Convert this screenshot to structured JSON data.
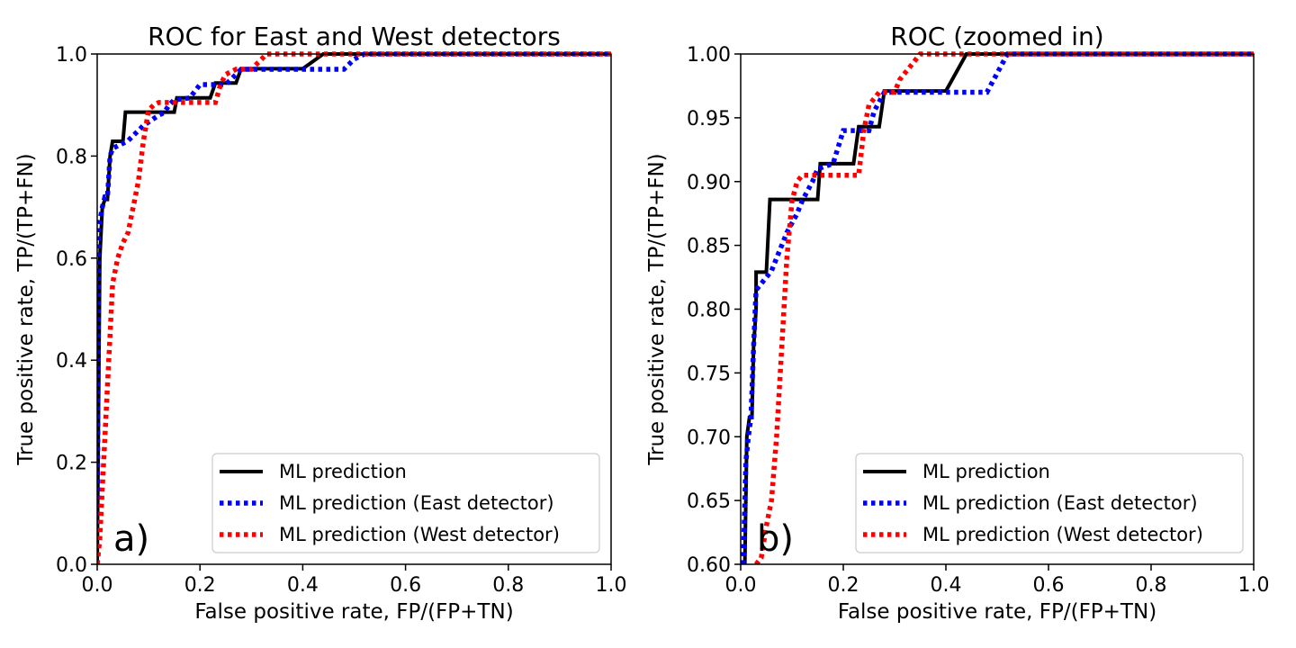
{
  "chart_data": [
    {
      "type": "line",
      "title": "ROC for East and West detectors",
      "xlabel": "False positive rate, FP/(FP+TN)",
      "ylabel": "True positive rate,  TP/(TP+FN)",
      "xlim": [
        0,
        1
      ],
      "ylim": [
        0,
        1
      ],
      "xticks": [
        "0.0",
        "0.2",
        "0.4",
        "0.6",
        "0.8",
        "1.0"
      ],
      "yticks": [
        "0.0",
        "0.2",
        "0.4",
        "0.6",
        "0.8",
        "1.0"
      ],
      "panel_label": "a)",
      "legend_position": "lower-right",
      "series": [
        {
          "name": "ML prediction",
          "color": "#000000",
          "style": "solid",
          "x": [
            0,
            0.005,
            0.01,
            0.015,
            0.02,
            0.025,
            0.03,
            0.035,
            0.04,
            0.05,
            0.055,
            0.06,
            0.09,
            0.15,
            0.155,
            0.22,
            0.23,
            0.24,
            0.27,
            0.28,
            0.29,
            0.33,
            0.4,
            0.44,
            0.5,
            1.0
          ],
          "y": [
            0,
            0.6,
            0.7,
            0.715,
            0.715,
            0.8,
            0.829,
            0.829,
            0.829,
            0.829,
            0.886,
            0.886,
            0.886,
            0.886,
            0.914,
            0.914,
            0.943,
            0.943,
            0.943,
            0.971,
            0.971,
            0.971,
            0.971,
            1.0,
            1.0,
            1.0
          ]
        },
        {
          "name": "ML prediction (East detector)",
          "color": "#0000ff",
          "style": "dotted",
          "x": [
            0,
            0.003,
            0.01,
            0.015,
            0.02,
            0.025,
            0.03,
            0.04,
            0.06,
            0.07,
            0.08,
            0.09,
            0.12,
            0.13,
            0.14,
            0.15,
            0.18,
            0.2,
            0.24,
            0.25,
            0.26,
            0.27,
            0.28,
            0.3,
            0.33,
            0.48,
            0.5,
            0.52,
            1.0
          ],
          "y": [
            0,
            0.66,
            0.7,
            0.72,
            0.72,
            0.8,
            0.815,
            0.82,
            0.83,
            0.84,
            0.85,
            0.86,
            0.88,
            0.885,
            0.9,
            0.91,
            0.914,
            0.94,
            0.94,
            0.94,
            0.95,
            0.96,
            0.97,
            0.97,
            0.97,
            0.97,
            0.99,
            1.0,
            1.0
          ]
        },
        {
          "name": "ML prediction (West detector)",
          "color": "#ff0000",
          "style": "dotted",
          "x": [
            0,
            0.005,
            0.01,
            0.015,
            0.02,
            0.025,
            0.03,
            0.04,
            0.05,
            0.06,
            0.07,
            0.08,
            0.09,
            0.1,
            0.11,
            0.12,
            0.15,
            0.2,
            0.23,
            0.24,
            0.25,
            0.27,
            0.3,
            0.31,
            0.33,
            0.36,
            1.0
          ],
          "y": [
            0,
            0.05,
            0.15,
            0.25,
            0.35,
            0.45,
            0.55,
            0.6,
            0.63,
            0.65,
            0.7,
            0.75,
            0.83,
            0.89,
            0.9,
            0.905,
            0.905,
            0.905,
            0.905,
            0.94,
            0.96,
            0.97,
            0.97,
            0.98,
            1.0,
            1.0,
            1.0
          ]
        }
      ]
    },
    {
      "type": "line",
      "title": "ROC (zoomed in)",
      "xlabel": "False positive rate, FP/(FP+TN)",
      "ylabel": "True positive rate,  TP/(TP+FN)",
      "xlim": [
        0,
        1
      ],
      "ylim": [
        0.6,
        1
      ],
      "xticks": [
        "0.0",
        "0.2",
        "0.4",
        "0.6",
        "0.8",
        "1.0"
      ],
      "yticks": [
        "0.60",
        "0.65",
        "0.70",
        "0.75",
        "0.80",
        "0.85",
        "0.90",
        "0.95",
        "1.00"
      ],
      "panel_label": "b)",
      "legend_position": "lower-right",
      "series": [
        {
          "name": "ML prediction",
          "color": "#000000",
          "style": "solid",
          "x": [
            0.008,
            0.012,
            0.017,
            0.022,
            0.025,
            0.03,
            0.03,
            0.04,
            0.05,
            0.057,
            0.15,
            0.155,
            0.22,
            0.23,
            0.27,
            0.28,
            0.29,
            0.4,
            0.44,
            1.0
          ],
          "y": [
            0.6,
            0.7,
            0.715,
            0.715,
            0.77,
            0.8,
            0.829,
            0.829,
            0.829,
            0.886,
            0.886,
            0.914,
            0.914,
            0.943,
            0.943,
            0.971,
            0.971,
            0.971,
            1.0,
            1.0
          ]
        },
        {
          "name": "ML prediction (East detector)",
          "color": "#0000ff",
          "style": "dotted",
          "x": [
            0.005,
            0.01,
            0.015,
            0.02,
            0.025,
            0.03,
            0.04,
            0.06,
            0.07,
            0.08,
            0.09,
            0.11,
            0.12,
            0.14,
            0.15,
            0.18,
            0.2,
            0.24,
            0.25,
            0.26,
            0.28,
            0.3,
            0.48,
            0.5,
            0.52,
            1.0
          ],
          "y": [
            0.6,
            0.68,
            0.7,
            0.715,
            0.77,
            0.815,
            0.82,
            0.83,
            0.84,
            0.85,
            0.86,
            0.875,
            0.885,
            0.9,
            0.91,
            0.914,
            0.94,
            0.94,
            0.94,
            0.955,
            0.97,
            0.97,
            0.97,
            0.985,
            1.0,
            1.0
          ]
        },
        {
          "name": "ML prediction (West detector)",
          "color": "#ff0000",
          "style": "dotted",
          "x": [
            0.03,
            0.04,
            0.05,
            0.06,
            0.07,
            0.08,
            0.09,
            0.1,
            0.11,
            0.12,
            0.15,
            0.2,
            0.23,
            0.24,
            0.25,
            0.27,
            0.3,
            0.31,
            0.33,
            0.35,
            1.0
          ],
          "y": [
            0.6,
            0.605,
            0.63,
            0.65,
            0.7,
            0.77,
            0.84,
            0.885,
            0.9,
            0.905,
            0.905,
            0.905,
            0.905,
            0.94,
            0.96,
            0.97,
            0.97,
            0.98,
            0.99,
            1.0,
            1.0
          ]
        }
      ]
    }
  ]
}
